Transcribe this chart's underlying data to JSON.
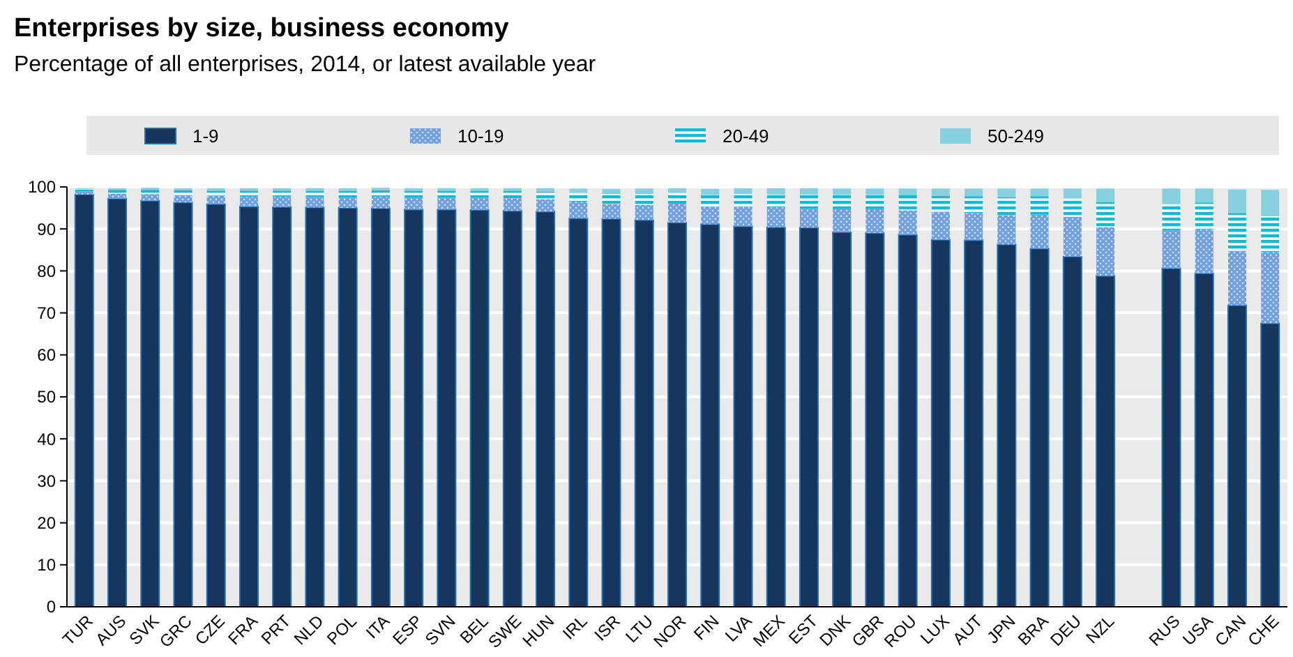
{
  "chart_data": {
    "type": "bar",
    "title": "Enterprises by size, business economy",
    "subtitle": "Percentage of all enterprises, 2014, or latest available year",
    "stacked": true,
    "legend": "top",
    "grid": "y",
    "ylim": [
      0,
      100
    ],
    "yticks": [
      0,
      10,
      20,
      30,
      40,
      50,
      60,
      70,
      80,
      90,
      100
    ],
    "categories": [
      "TUR",
      "AUS",
      "SVK",
      "GRC",
      "CZE",
      "FRA",
      "PRT",
      "NLD",
      "POL",
      "ITA",
      "ESP",
      "SVN",
      "BEL",
      "SWE",
      "HUN",
      "IRL",
      "ISR",
      "LTU",
      "NOR",
      "FIN",
      "LVA",
      "MEX",
      "EST",
      "DNK",
      "GBR",
      "ROU",
      "LUX",
      "AUT",
      "JPN",
      "BRA",
      "DEU",
      "NZL",
      null,
      "RUS",
      "USA",
      "CAN",
      "CHE"
    ],
    "series": [
      {
        "name": "1-9",
        "color": "#17365d",
        "values": [
          98.2,
          97.2,
          96.7,
          96.3,
          95.9,
          95.3,
          95.2,
          95.1,
          95.0,
          94.9,
          94.6,
          94.6,
          94.5,
          94.3,
          94.1,
          92.5,
          92.4,
          92.1,
          91.5,
          91.1,
          90.6,
          90.4,
          90.3,
          89.2,
          89.0,
          88.6,
          87.4,
          87.3,
          86.3,
          85.3,
          83.4,
          78.8,
          null,
          80.6,
          79.4,
          71.8,
          67.5
        ]
      },
      {
        "name": "10-19",
        "color": "#6f9fe0",
        "values": [
          0.7,
          1.2,
          1.6,
          1.8,
          2.0,
          2.4,
          2.5,
          2.5,
          2.4,
          2.8,
          2.8,
          2.8,
          2.9,
          3.0,
          3.0,
          4.0,
          3.5,
          3.6,
          4.5,
          4.2,
          4.7,
          4.8,
          4.5,
          5.5,
          5.7,
          5.8,
          6.7,
          6.5,
          7.0,
          8.2,
          9.5,
          11.6,
          null,
          9.0,
          10.5,
          13.0,
          17.0
        ]
      },
      {
        "name": "20-49",
        "color": "#1ab6d2",
        "values": [
          0.6,
          0.9,
          1.0,
          1.1,
          1.2,
          1.4,
          1.4,
          1.4,
          1.6,
          1.5,
          1.6,
          1.6,
          1.6,
          1.7,
          1.8,
          2.1,
          2.4,
          2.6,
          2.6,
          2.8,
          3.0,
          3.0,
          3.4,
          3.4,
          3.4,
          3.6,
          3.8,
          4.0,
          4.3,
          4.3,
          4.4,
          6.0,
          null,
          6.5,
          6.4,
          9.0,
          8.5
        ]
      },
      {
        "name": "50-249",
        "color": "#86d0e0",
        "values": [
          0.2,
          0.4,
          0.5,
          0.5,
          0.6,
          0.6,
          0.6,
          0.7,
          0.7,
          0.6,
          0.7,
          0.7,
          0.7,
          0.7,
          0.8,
          1.0,
          1.2,
          1.3,
          1.1,
          1.4,
          1.4,
          1.5,
          1.5,
          1.5,
          1.5,
          1.6,
          1.7,
          1.8,
          2.0,
          1.8,
          2.3,
          3.2,
          null,
          3.5,
          3.3,
          5.6,
          6.3
        ]
      }
    ]
  }
}
